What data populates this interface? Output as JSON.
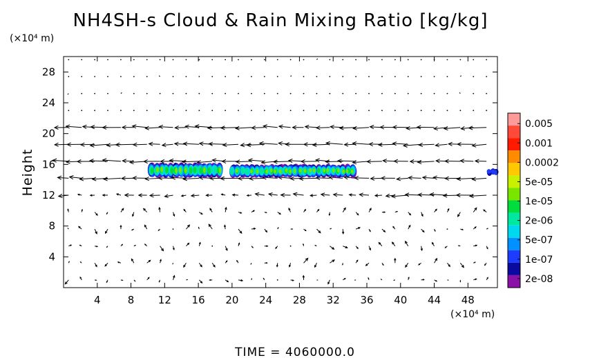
{
  "chart_data": {
    "type": "heatmap",
    "title": "NH4SH-s Cloud & Rain Mixing Ratio [kg/kg]",
    "ylabel": "Height",
    "y_unit": "(x10^4 m)",
    "x_unit": "(x10^4 m)",
    "xlim": [
      0,
      51.5
    ],
    "ylim": [
      0,
      30
    ],
    "x_ticks": [
      "4",
      "8",
      "12",
      "16",
      "20",
      "24",
      "28",
      "32",
      "36",
      "40",
      "44",
      "48"
    ],
    "x_tick_values": [
      4,
      8,
      12,
      16,
      20,
      24,
      28,
      32,
      36,
      40,
      44,
      48
    ],
    "y_ticks": [
      "4",
      "8",
      "12",
      "16",
      "20",
      "24",
      "28"
    ],
    "y_tick_values": [
      4,
      8,
      12,
      16,
      20,
      24,
      28
    ],
    "colorbar": {
      "labels": [
        "0.005",
        "0.001",
        "0.0002",
        "5e-05",
        "1e-05",
        "2e-06",
        "5e-07",
        "1e-07",
        "2e-08"
      ],
      "colors": [
        "#ff9a9a",
        "#ff4a3a",
        "#ff1a00",
        "#ff8c00",
        "#ffc800",
        "#c8f000",
        "#7ae600",
        "#00dd3c",
        "#00e8a0",
        "#00d8f0",
        "#0090ff",
        "#1c3cff",
        "#0a0aa0",
        "#8a10a8"
      ]
    },
    "cloud_regions": [
      {
        "x_range": [
          10.2,
          18.8
        ],
        "y_range": [
          14.3,
          16.2
        ],
        "peak": "5e-05"
      },
      {
        "x_range": [
          19.8,
          34.6
        ],
        "y_range": [
          14.3,
          16.0
        ],
        "peak": "5e-05"
      },
      {
        "x_range": [
          50.3,
          51.5
        ],
        "y_range": [
          14.6,
          15.4
        ],
        "peak": "1e-07"
      }
    ],
    "wind_field": {
      "description_levels": "strong westward flow near 14-20, weak vectors elsewhere",
      "strong_layers_y": [
        12,
        14.2,
        16,
        17,
        18.8,
        20
      ]
    }
  },
  "footer": {
    "time_label": "TIME  =  4060000.0"
  },
  "text": {
    "y_unit_display": "(×10⁴ m)",
    "x_unit_display": "(×10⁴ m)"
  }
}
